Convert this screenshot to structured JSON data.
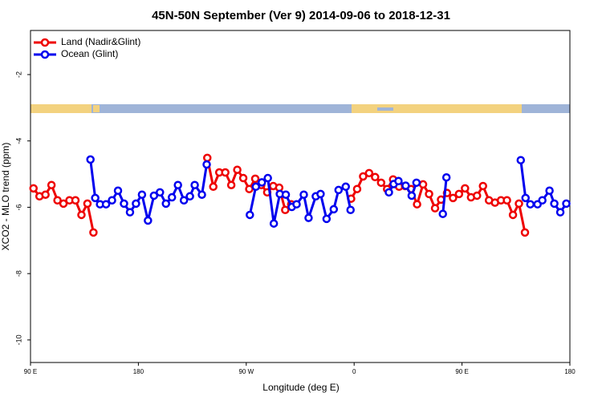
{
  "chart_data": {
    "type": "line",
    "title": "45N-50N September (Ver 9)   2014-09-06 to 2018-12-31",
    "x_label": "Longitude (deg E)",
    "y_label": "XCO2 - MLO trend (ppm)",
    "xlim": [
      90,
      540
    ],
    "xticks": [
      {
        "value": 90,
        "label": "90 E"
      },
      {
        "value": 180,
        "label": "180"
      },
      {
        "value": 270,
        "label": "90 W"
      },
      {
        "value": 360,
        "label": "0"
      },
      {
        "value": 450,
        "label": "90 E"
      },
      {
        "value": 540,
        "label": "180"
      }
    ],
    "ylim": [
      -10.68,
      -0.67
    ],
    "yticks": [
      -10,
      -8,
      -6,
      -4,
      -2
    ],
    "legend": "top-left",
    "series": [
      {
        "name": "Land (Nadir&Glint)",
        "color": "#ee0000",
        "x": [
          92.5,
          97.5,
          102.5,
          107.5,
          112.5,
          117.5,
          122.5,
          127.5,
          132.5,
          137.5,
          142.5,
          190,
          237.5,
          242.5,
          247.5,
          252.5,
          257.5,
          262.5,
          267.5,
          272.5,
          277.5,
          282.5,
          287.5,
          292.5,
          297.5,
          302.5,
          307.5,
          330,
          357.5,
          362.5,
          367.5,
          372.5,
          377.5,
          382.5,
          387.5,
          392.5,
          397.5,
          402.5,
          407.5,
          412.5,
          417.5,
          422.5,
          427.5,
          432.5,
          437.5,
          442.5,
          447.5,
          452.5,
          457.5,
          462.5,
          467.5,
          472.5,
          477.5,
          482.5,
          487.5,
          492.5,
          497.5,
          502.5
        ],
        "values": [
          -5.43,
          -5.67,
          -5.62,
          -5.33,
          -5.79,
          -5.89,
          -5.79,
          -5.79,
          -6.23,
          -5.89,
          -6.76,
          null,
          -4.51,
          -5.38,
          -4.95,
          -4.95,
          -5.33,
          -4.87,
          -5.12,
          -5.45,
          -5.14,
          -5.33,
          -5.55,
          -5.36,
          -5.41,
          -6.08,
          -5.91,
          null,
          -5.74,
          -5.45,
          -5.07,
          -4.97,
          -5.09,
          -5.26,
          -5.45,
          -5.16,
          -5.38,
          -5.36,
          -5.45,
          -5.91,
          -5.31,
          -5.6,
          -6.03,
          -5.77,
          -5.57,
          -5.72,
          -5.6,
          -5.43,
          -5.7,
          -5.65,
          -5.36,
          -5.79,
          -5.86,
          -5.79,
          -5.79,
          -6.23,
          -5.89,
          -6.76
        ]
      },
      {
        "name": "Ocean (Glint)",
        "color": "#0000ee",
        "x": [
          140,
          144,
          148,
          153,
          158,
          163,
          168,
          173,
          178,
          183,
          188,
          193,
          198,
          203,
          208,
          213,
          218,
          223,
          227,
          233,
          237,
          255,
          273,
          278,
          283,
          288,
          293,
          298,
          303,
          308,
          312,
          318,
          322,
          328,
          332,
          337,
          343,
          347,
          353,
          357,
          373,
          389,
          393,
          397,
          403,
          408,
          412,
          423,
          434,
          437,
          468,
          499,
          503,
          507,
          513,
          517,
          523,
          527,
          532,
          537
        ],
        "values": [
          -4.56,
          -5.72,
          -5.91,
          -5.91,
          -5.79,
          -5.5,
          -5.89,
          -6.15,
          -5.89,
          -5.62,
          -6.4,
          -5.65,
          -5.55,
          -5.89,
          -5.7,
          -5.33,
          -5.79,
          -5.67,
          -5.33,
          -5.62,
          -4.71,
          null,
          -6.23,
          -5.38,
          -5.25,
          -5.12,
          -6.49,
          -5.6,
          -5.62,
          -5.99,
          -5.91,
          -5.62,
          -6.32,
          -5.67,
          -5.6,
          -6.35,
          -6.06,
          -5.48,
          -5.38,
          -6.08,
          null,
          -5.55,
          -5.3,
          -5.21,
          -5.35,
          -5.65,
          -5.26,
          null,
          -6.2,
          -5.1,
          null,
          -4.58,
          -5.72,
          -5.91,
          -5.91,
          -5.79,
          -5.5,
          -5.89,
          -6.15,
          -5.89
        ]
      }
    ]
  }
}
